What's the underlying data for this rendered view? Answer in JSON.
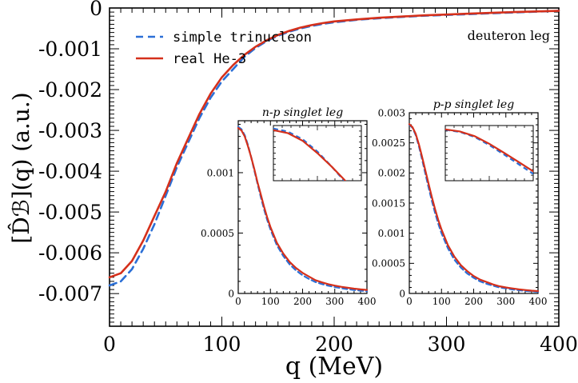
{
  "chart_data": [
    {
      "type": "line",
      "xlabel": "q (MeV)",
      "ylabel": "[D̂ℬ](q) (a.u.)",
      "annotation": "deuteron leg",
      "xlim": [
        0,
        400
      ],
      "ylim": [
        -0.0078,
        0
      ],
      "x_ticks": [
        0,
        100,
        200,
        300,
        400
      ],
      "x_tick_labels": [
        "0",
        "100",
        "200",
        "300",
        "400"
      ],
      "y_ticks": [
        0,
        -0.001,
        -0.002,
        -0.003,
        -0.004,
        -0.005,
        -0.006,
        -0.007
      ],
      "y_tick_labels": [
        "0",
        "-0.001",
        "-0.002",
        "-0.003",
        "-0.004",
        "-0.005",
        "-0.006",
        "-0.007"
      ],
      "legend": "top-left",
      "series": [
        {
          "name": "simple trinucleon",
          "style": "dashed",
          "color": "#2b6fd6",
          "x": [
            0,
            10,
            20,
            30,
            40,
            50,
            60,
            70,
            80,
            90,
            100,
            110,
            120,
            130,
            140,
            150,
            160,
            170,
            180,
            190,
            200,
            220,
            240,
            260,
            280,
            300,
            320,
            340,
            360,
            380,
            400
          ],
          "y": [
            -0.0068,
            -0.0067,
            -0.0064,
            -0.0059,
            -0.0053,
            -0.0046,
            -0.0039,
            -0.0033,
            -0.0027,
            -0.0022,
            -0.0018,
            -0.0015,
            -0.0012,
            -0.00098,
            -0.00081,
            -0.00068,
            -0.00058,
            -0.0005,
            -0.00044,
            -0.00039,
            -0.00035,
            -0.00029,
            -0.00025,
            -0.00022,
            -0.00019,
            -0.00017,
            -0.00015,
            -0.00013,
            -0.00011,
            -9e-05,
            -7e-05
          ]
        },
        {
          "name": "real He-3",
          "style": "solid",
          "color": "#d5301b",
          "x": [
            0,
            10,
            20,
            30,
            40,
            50,
            60,
            70,
            80,
            90,
            100,
            110,
            120,
            130,
            140,
            150,
            160,
            170,
            180,
            190,
            200,
            220,
            240,
            260,
            280,
            300,
            320,
            340,
            360,
            380,
            400
          ],
          "y": [
            -0.0066,
            -0.0065,
            -0.0062,
            -0.0057,
            -0.0051,
            -0.0045,
            -0.0038,
            -0.0032,
            -0.0026,
            -0.0021,
            -0.0017,
            -0.0014,
            -0.00115,
            -0.00095,
            -0.00079,
            -0.00066,
            -0.00056,
            -0.00048,
            -0.00042,
            -0.00037,
            -0.00033,
            -0.00028,
            -0.00024,
            -0.00021,
            -0.00018,
            -0.00016,
            -0.00014,
            -0.00012,
            -0.0001,
            -8.5e-05,
            -7e-05
          ]
        }
      ]
    },
    {
      "type": "line",
      "title": "n-p singlet leg",
      "xlim": [
        0,
        400
      ],
      "ylim": [
        0,
        0.00143
      ],
      "x_ticks": [
        0,
        100,
        200,
        300,
        400
      ],
      "x_tick_labels": [
        "0",
        "100",
        "200",
        "300",
        "400"
      ],
      "y_ticks": [
        0,
        0.0005,
        0.001
      ],
      "y_tick_labels": [
        "0",
        "0.0005",
        "0.001"
      ],
      "series": [
        {
          "name": "simple trinucleon",
          "style": "dashed",
          "color": "#2b6fd6",
          "x": [
            0,
            10,
            20,
            30,
            40,
            50,
            60,
            70,
            80,
            90,
            100,
            120,
            140,
            160,
            180,
            200,
            220,
            240,
            260,
            280,
            300,
            320,
            340,
            360,
            380,
            400
          ],
          "y": [
            0.00138,
            0.00136,
            0.00131,
            0.00123,
            0.00113,
            0.00102,
            0.00091,
            0.0008,
            0.0007,
            0.00061,
            0.00053,
            0.0004,
            0.00031,
            0.00024,
            0.00019,
            0.00015,
            0.00012,
            9.5e-05,
            7.8e-05,
            6.4e-05,
            5.3e-05,
            4.4e-05,
            3.6e-05,
            2.9e-05,
            2.3e-05,
            1.8e-05
          ]
        },
        {
          "name": "real He-3",
          "style": "solid",
          "color": "#d5301b",
          "x": [
            0,
            10,
            20,
            30,
            40,
            50,
            60,
            70,
            80,
            90,
            100,
            120,
            140,
            160,
            180,
            200,
            220,
            240,
            260,
            280,
            300,
            320,
            340,
            360,
            380,
            400
          ],
          "y": [
            0.00137,
            0.00135,
            0.0013,
            0.00122,
            0.00113,
            0.00103,
            0.00092,
            0.00082,
            0.00072,
            0.00063,
            0.00055,
            0.00042,
            0.00033,
            0.00026,
            0.00021,
            0.00017,
            0.00014,
            0.00011,
            9.2e-05,
            7.7e-05,
            6.5e-05,
            5.5e-05,
            4.7e-05,
            4e-05,
            3.4e-05,
            2.9e-05
          ]
        }
      ]
    },
    {
      "type": "line",
      "title": "p-p singlet leg",
      "xlim": [
        0,
        400
      ],
      "ylim": [
        0,
        0.003
      ],
      "x_ticks": [
        0,
        100,
        200,
        300,
        400
      ],
      "x_tick_labels": [
        "0",
        "100",
        "200",
        "300",
        "400"
      ],
      "y_ticks": [
        0,
        0.0005,
        0.001,
        0.0015,
        0.002,
        0.0025,
        0.003
      ],
      "y_tick_labels": [
        "0",
        "0.0005",
        "0.001",
        "0.0015",
        "0.002",
        "0.0025",
        "0.003"
      ],
      "series": [
        {
          "name": "simple trinucleon",
          "style": "dashed",
          "color": "#2b6fd6",
          "x": [
            0,
            10,
            20,
            30,
            40,
            50,
            60,
            70,
            80,
            90,
            100,
            120,
            140,
            160,
            180,
            200,
            220,
            240,
            260,
            280,
            300,
            320,
            340,
            360,
            380,
            400
          ],
          "y": [
            0.0028,
            0.00275,
            0.00263,
            0.00244,
            0.00222,
            0.00199,
            0.00176,
            0.00154,
            0.00134,
            0.00116,
            0.001,
            0.00075,
            0.00056,
            0.00043,
            0.00033,
            0.00026,
            0.0002,
            0.00016,
            0.00013,
            0.0001,
            8.3e-05,
            6.7e-05,
            5.4e-05,
            4.3e-05,
            3.4e-05,
            2.7e-05
          ]
        },
        {
          "name": "real He-3",
          "style": "solid",
          "color": "#d5301b",
          "x": [
            0,
            10,
            20,
            30,
            40,
            50,
            60,
            70,
            80,
            90,
            100,
            120,
            140,
            160,
            180,
            200,
            220,
            240,
            260,
            280,
            300,
            320,
            340,
            360,
            380,
            400
          ],
          "y": [
            0.00281,
            0.00276,
            0.00265,
            0.00247,
            0.00226,
            0.00204,
            0.00182,
            0.0016,
            0.0014,
            0.00122,
            0.00106,
            0.0008,
            0.00061,
            0.00047,
            0.00037,
            0.00029,
            0.00023,
            0.00019,
            0.00015,
            0.00012,
            0.0001,
            8.3e-05,
            6.9e-05,
            5.7e-05,
            4.7e-05,
            3.9e-05
          ]
        }
      ]
    }
  ]
}
